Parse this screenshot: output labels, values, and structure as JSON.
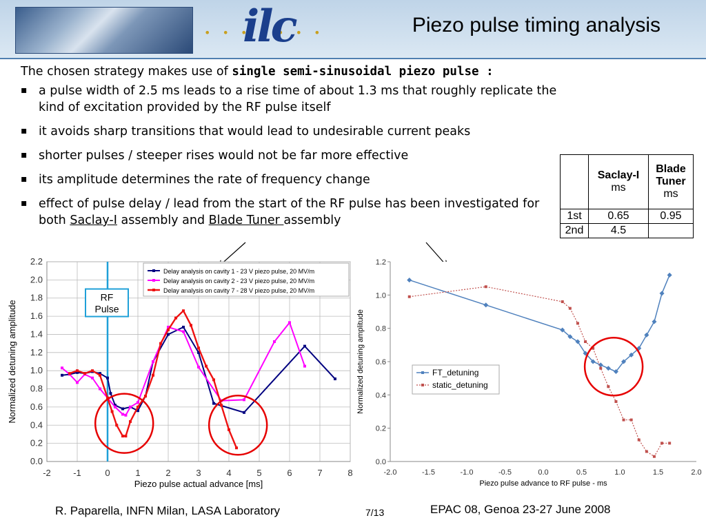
{
  "title": "Piezo pulse timing analysis",
  "logo": {
    "name": "ilc",
    "dots": "• • • • • • •"
  },
  "intro": {
    "prefix": "The chosen strategy makes use of ",
    "bold": "single semi-sinusoidal piezo pulse :"
  },
  "bullets": [
    "a pulse width of 2.5 ms leads to a rise time of about 1.3 ms that roughly replicate the kind of excitation provided by the RF pulse itself",
    "it avoids sharp transitions that would lead to undesirable current peaks",
    "shorter pulses / steeper rises would not be far more effective",
    "its amplitude determines the rate of frequency change"
  ],
  "bullet5": {
    "a": "effect of pulse delay / lead from the start of the RF pulse has been investigated for both ",
    "saclay": "Saclay-I",
    "b": " assembly and ",
    "blade": "Blade Tuner ",
    "c": "assembly"
  },
  "table": {
    "header": [
      "",
      "Saclay-I",
      "ms",
      "Blade Tuner",
      "ms"
    ],
    "rows": [
      [
        "1st",
        "0.65",
        "0.95"
      ],
      [
        "2nd",
        "4.5",
        ""
      ]
    ]
  },
  "footer": {
    "left": "R. Paparella, INFN Milan, LASA Laboratory",
    "page": "7/13",
    "right": "EPAC 08, Genoa 23-27 June 2008"
  },
  "chart_data": [
    {
      "type": "line",
      "xlabel": "Piezo pulse actual advance [ms]",
      "ylabel": "Normalized detuning amplitude",
      "xlim": [
        -2,
        8
      ],
      "ylim": [
        0,
        2.2
      ],
      "xticks": [
        "-2",
        "-1",
        "0",
        "1",
        "2",
        "3",
        "4",
        "5",
        "6",
        "7",
        "8"
      ],
      "yticks": [
        "0.0",
        "0.2",
        "0.4",
        "0.6",
        "0.8",
        "1.0",
        "1.2",
        "1.4",
        "1.6",
        "1.8",
        "2.0",
        "2.2"
      ],
      "grid": true,
      "legend_position": "top-right",
      "annotation": "RF Pulse",
      "rf_marker_x": 0,
      "series": [
        {
          "name": "Delay analysis on cavity 1 - 23 V piezo pulse, 20 MV/m",
          "color": "#000080",
          "x": [
            -1.5,
            -1.25,
            -1.0,
            -0.75,
            -0.5,
            -0.25,
            0,
            0.1,
            0.25,
            0.5,
            0.75,
            1.0,
            1.25,
            1.5,
            2.0,
            2.5,
            3.0,
            3.5,
            4.5,
            6.5,
            7.5
          ],
          "y": [
            0.95,
            0.96,
            0.98,
            0.97,
            0.99,
            0.97,
            0.92,
            0.75,
            0.62,
            0.58,
            0.6,
            0.56,
            0.72,
            1.1,
            1.4,
            1.48,
            1.2,
            0.64,
            0.54,
            1.27,
            0.91
          ]
        },
        {
          "name": "Delay analysis on cavity 2 - 23 V piezo pulse, 20 MV/m",
          "color": "#ff00ff",
          "x": [
            -1.5,
            -1.25,
            -1.0,
            -0.75,
            -0.5,
            -0.25,
            0,
            0.25,
            0.5,
            0.6,
            0.75,
            1.0,
            1.5,
            2.0,
            2.5,
            3.0,
            3.75,
            4.5,
            5.5,
            6.0,
            6.5
          ],
          "y": [
            1.03,
            0.96,
            0.87,
            0.96,
            0.92,
            0.8,
            0.7,
            0.6,
            0.52,
            0.51,
            0.6,
            0.65,
            1.1,
            1.48,
            1.43,
            1.04,
            0.67,
            0.68,
            1.32,
            1.53,
            1.05
          ]
        },
        {
          "name": "Delay analysis on cavity 7 - 28 V piezo pulse, 20 MV/m",
          "color": "#ee1111",
          "x": [
            -1.25,
            -1.0,
            -0.75,
            -0.5,
            -0.25,
            0,
            0.15,
            0.3,
            0.5,
            0.6,
            0.75,
            1.0,
            1.25,
            1.5,
            1.75,
            2.0,
            2.25,
            2.5,
            2.75,
            3.0,
            3.25,
            3.5,
            3.75,
            4.0,
            4.25
          ],
          "y": [
            0.97,
            1.0,
            0.97,
            1.0,
            0.95,
            0.7,
            0.55,
            0.4,
            0.28,
            0.28,
            0.44,
            0.6,
            0.72,
            0.95,
            1.3,
            1.45,
            1.58,
            1.66,
            1.5,
            1.25,
            1.05,
            0.9,
            0.62,
            0.35,
            0.15
          ]
        }
      ]
    },
    {
      "type": "line",
      "xlabel": "Piezo pulse advance to RF pulse - ms",
      "ylabel": "Normalized detuning amplitude",
      "xlim": [
        -2.0,
        2.0
      ],
      "ylim": [
        0.0,
        1.2
      ],
      "xticks": [
        "-2.0",
        "-1.5",
        "-1.0",
        "-0.5",
        "0.0",
        "0.5",
        "1.0",
        "1.5",
        "2.0"
      ],
      "yticks": [
        "0.0",
        "0.2",
        "0.4",
        "0.6",
        "0.8",
        "1.0",
        "1.2"
      ],
      "grid": false,
      "legend_position": "center-left",
      "series": [
        {
          "name": "FT_detuning",
          "color": "#4f81bd",
          "x": [
            -1.75,
            -0.75,
            0.25,
            0.35,
            0.45,
            0.55,
            0.65,
            0.75,
            0.85,
            0.95,
            1.05,
            1.15,
            1.25,
            1.35,
            1.45,
            1.55,
            1.65
          ],
          "y": [
            1.09,
            0.94,
            0.79,
            0.75,
            0.72,
            0.65,
            0.6,
            0.58,
            0.56,
            0.54,
            0.6,
            0.64,
            0.68,
            0.76,
            0.84,
            1.01,
            1.12
          ]
        },
        {
          "name": "static_detuning",
          "color": "#c0504d",
          "x": [
            -1.75,
            -0.75,
            0.25,
            0.35,
            0.45,
            0.55,
            0.65,
            0.75,
            0.85,
            0.95,
            1.05,
            1.15,
            1.25,
            1.35,
            1.45,
            1.55,
            1.65
          ],
          "y": [
            0.99,
            1.05,
            0.96,
            0.92,
            0.83,
            0.72,
            0.68,
            0.56,
            0.45,
            0.36,
            0.25,
            0.25,
            0.13,
            0.06,
            0.03,
            0.11,
            0.11
          ]
        }
      ]
    }
  ]
}
